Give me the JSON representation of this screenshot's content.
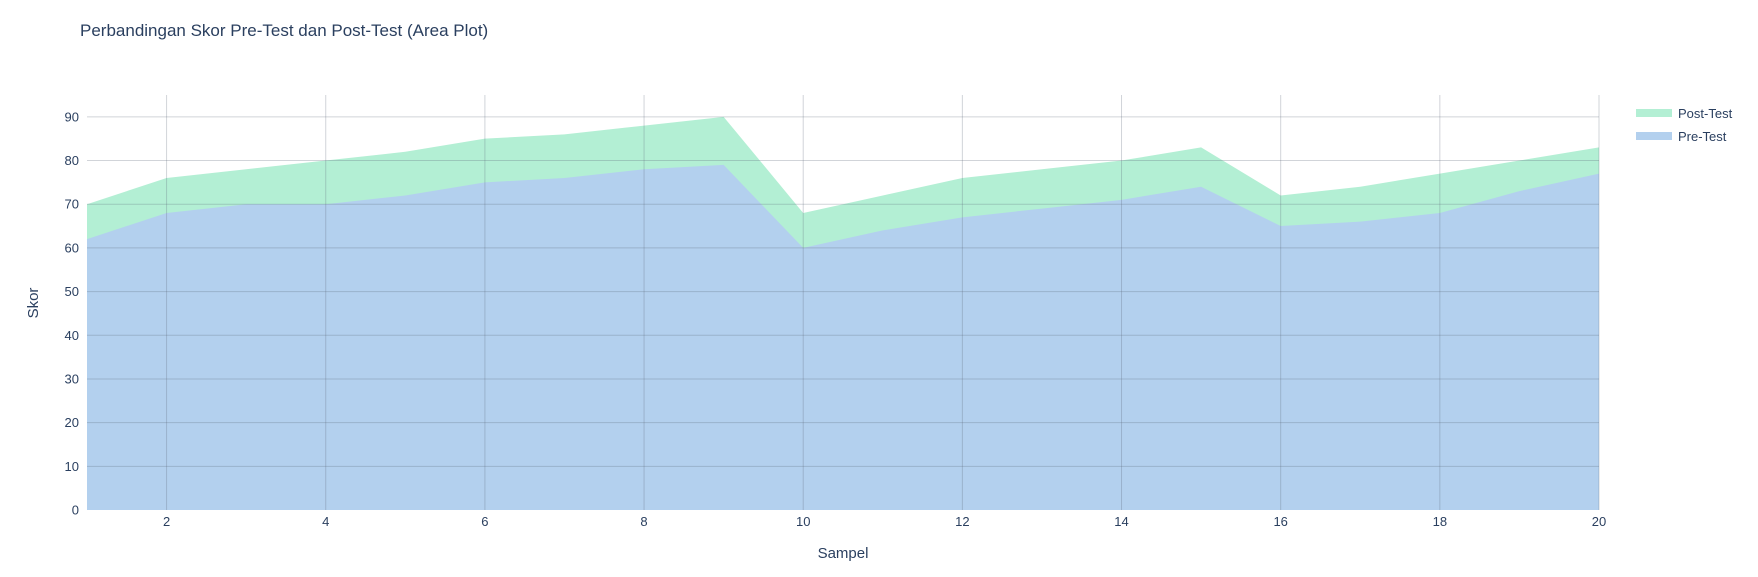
{
  "chart_data": {
    "type": "area",
    "title": "Perbandingan Skor Pre-Test dan Post-Test (Area Plot)",
    "xlabel": "Sampel",
    "ylabel": "Skor",
    "x": [
      1,
      2,
      3,
      4,
      5,
      6,
      7,
      8,
      9,
      10,
      11,
      12,
      13,
      14,
      15,
      16,
      17,
      18,
      19,
      20
    ],
    "xlim": [
      1,
      20
    ],
    "ylim": [
      0,
      95
    ],
    "x_ticks": [
      2,
      4,
      6,
      8,
      10,
      12,
      14,
      16,
      18,
      20
    ],
    "y_ticks": [
      0,
      10,
      20,
      30,
      40,
      50,
      60,
      70,
      80,
      90
    ],
    "grid": true,
    "legend_position": "top-right",
    "series": [
      {
        "name": "Pre-Test",
        "color": "#b3d0ee",
        "values": [
          62,
          68,
          70,
          70,
          72,
          75,
          76,
          78,
          79,
          60,
          64,
          67,
          69,
          71,
          74,
          65,
          66,
          68,
          73,
          77
        ]
      },
      {
        "name": "Post-Test",
        "color": "#b3efd4",
        "values": [
          70,
          76,
          78,
          80,
          82,
          85,
          86,
          88,
          90,
          68,
          72,
          76,
          78,
          80,
          83,
          72,
          74,
          77,
          80,
          83
        ]
      }
    ]
  }
}
